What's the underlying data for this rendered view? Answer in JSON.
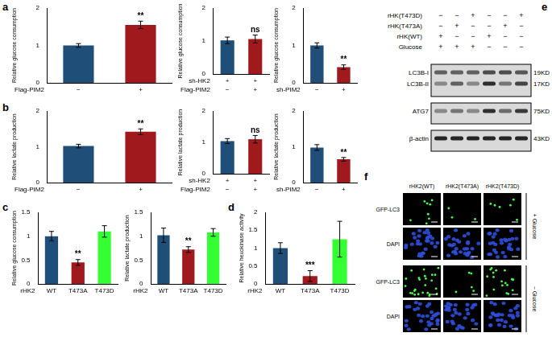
{
  "panel_labels": [
    "a",
    "b",
    "c",
    "d",
    "e",
    "f"
  ],
  "chart_data": [
    {
      "type": "bar",
      "y_label": "Relative glucose consumption",
      "x_rows": [
        "Flag-PIM2"
      ],
      "categories": [
        [
          "−"
        ],
        [
          "+"
        ]
      ],
      "values": [
        1.0,
        1.55
      ],
      "errors": [
        0.05,
        0.1
      ],
      "annotations": [
        {
          "index": 1,
          "text": "**"
        }
      ],
      "colors": [
        "#1f4e79",
        "#a0191c"
      ],
      "ylim": [
        0,
        2
      ],
      "yticks": [
        0,
        1,
        2
      ]
    },
    {
      "type": "bar",
      "y_label": "Relative glucose consumption",
      "x_rows": [
        "sh-HK2",
        "Flag-PIM2"
      ],
      "categories": [
        [
          "+",
          "−"
        ],
        [
          "+",
          "+"
        ]
      ],
      "values": [
        1.02,
        1.06
      ],
      "errors": [
        0.1,
        0.12
      ],
      "annotations": [
        {
          "index": 1,
          "text": "ns"
        }
      ],
      "colors": [
        "#1f4e79",
        "#a0191c"
      ],
      "ylim": [
        0,
        2
      ],
      "yticks": [
        0,
        1,
        2
      ]
    },
    {
      "type": "bar",
      "y_label": "Relative glucose consumption",
      "x_rows": [
        "sh-PIM2"
      ],
      "categories": [
        [
          "−"
        ],
        [
          "+"
        ]
      ],
      "values": [
        1.0,
        0.42
      ],
      "errors": [
        0.07,
        0.06
      ],
      "annotations": [
        {
          "index": 1,
          "text": "**"
        }
      ],
      "colors": [
        "#1f4e79",
        "#a0191c"
      ],
      "ylim": [
        0,
        2
      ],
      "yticks": [
        0,
        1,
        2
      ]
    },
    {
      "type": "bar",
      "y_label": "Relative lactate production",
      "x_rows": [
        "Flag-PIM2"
      ],
      "categories": [
        [
          "−"
        ],
        [
          "+"
        ]
      ],
      "values": [
        1.02,
        1.42
      ],
      "errors": [
        0.05,
        0.08
      ],
      "annotations": [
        {
          "index": 1,
          "text": "**"
        }
      ],
      "colors": [
        "#1f4e79",
        "#a0191c"
      ],
      "ylim": [
        0,
        2
      ],
      "yticks": [
        0,
        1,
        2
      ]
    },
    {
      "type": "bar",
      "y_label": "Relative lactate production",
      "x_rows": [
        "sh-HK2",
        "Flag-PIM2"
      ],
      "categories": [
        [
          "+",
          "−"
        ],
        [
          "+",
          "+"
        ]
      ],
      "values": [
        1.04,
        1.1
      ],
      "errors": [
        0.08,
        0.12
      ],
      "annotations": [
        {
          "index": 1,
          "text": "ns"
        }
      ],
      "colors": [
        "#1f4e79",
        "#a0191c"
      ],
      "ylim": [
        0,
        2
      ],
      "yticks": [
        0,
        1,
        2
      ]
    },
    {
      "type": "bar",
      "y_label": "Relative lactate production",
      "x_rows": [
        "sh-PIM2"
      ],
      "categories": [
        [
          "−"
        ],
        [
          "+"
        ]
      ],
      "values": [
        0.98,
        0.65
      ],
      "errors": [
        0.08,
        0.05
      ],
      "annotations": [
        {
          "index": 1,
          "text": "**"
        }
      ],
      "colors": [
        "#1f4e79",
        "#a0191c"
      ],
      "ylim": [
        0,
        2
      ],
      "yticks": [
        0,
        1,
        2
      ]
    },
    {
      "type": "bar",
      "y_label": "Relative glucose consumption",
      "x_rows": [
        "rHK2"
      ],
      "categories": [
        [
          "WT"
        ],
        [
          "T473A"
        ],
        [
          "T473D"
        ]
      ],
      "values": [
        1.0,
        0.45,
        1.1
      ],
      "errors": [
        0.1,
        0.06,
        0.12
      ],
      "annotations": [
        {
          "index": 1,
          "text": "**"
        }
      ],
      "colors": [
        "#1f4e79",
        "#a0191c",
        "#33ff33"
      ],
      "ylim": [
        0,
        1.5
      ],
      "yticks": [
        0,
        0.5,
        1,
        1.5
      ]
    },
    {
      "type": "bar",
      "y_label": "Relative lactate production",
      "x_rows": [
        "rHK2"
      ],
      "categories": [
        [
          "WT"
        ],
        [
          "T473A"
        ],
        [
          "T473D"
        ]
      ],
      "values": [
        1.02,
        0.72,
        1.08
      ],
      "errors": [
        0.15,
        0.06,
        0.08
      ],
      "annotations": [
        {
          "index": 1,
          "text": "**"
        }
      ],
      "colors": [
        "#1f4e79",
        "#a0191c",
        "#33ff33"
      ],
      "ylim": [
        0,
        1.5
      ],
      "yticks": [
        0,
        0.5,
        1,
        1.5
      ]
    },
    {
      "type": "bar",
      "y_label": "Relative hexokinase activity",
      "x_rows": [
        "rHK2"
      ],
      "categories": [
        [
          "WT"
        ],
        [
          "T473A"
        ],
        [
          "T473D"
        ]
      ],
      "values": [
        1.0,
        0.22,
        1.25
      ],
      "errors": [
        0.15,
        0.15,
        0.5
      ],
      "annotations": [
        {
          "index": 1,
          "text": "***"
        }
      ],
      "colors": [
        "#1f4e79",
        "#a0191c",
        "#33ff33"
      ],
      "ylim": [
        0,
        2
      ],
      "yticks": [
        0,
        0.5,
        1,
        1.5,
        2
      ]
    }
  ],
  "blot": {
    "conditions": [
      {
        "label": "rHK(T473D)",
        "signs": [
          "−",
          "−",
          "+",
          "−",
          "−",
          "+"
        ]
      },
      {
        "label": "rHK(T473A)",
        "signs": [
          "−",
          "+",
          "−",
          "−",
          "+",
          "−"
        ]
      },
      {
        "label": "rHK(WT)",
        "signs": [
          "+",
          "−",
          "−",
          "+",
          "−",
          "−"
        ]
      },
      {
        "label": "Glucose",
        "signs": [
          "+",
          "+",
          "+",
          "−",
          "−",
          "−"
        ]
      }
    ],
    "rows": [
      {
        "labels": [
          "LC3B-I",
          "LC3B-II"
        ],
        "sizes": [
          "19KD",
          "17KD"
        ],
        "bands": [
          [
            0.6,
            0.6,
            0.6,
            0.7,
            0.7,
            0.65
          ],
          [
            0.4,
            0.6,
            0.4,
            0.85,
            0.5,
            0.75
          ]
        ]
      },
      {
        "labels": [
          "ATG7"
        ],
        "sizes": [
          "75KD"
        ],
        "bands": [
          [
            0.4,
            0.5,
            0.4,
            0.85,
            0.55,
            0.8
          ]
        ]
      },
      {
        "labels": [
          "β-actin"
        ],
        "sizes": [
          "43KD"
        ],
        "bands": [
          [
            0.9,
            0.9,
            0.9,
            0.9,
            0.9,
            0.9
          ]
        ]
      }
    ]
  },
  "images": {
    "columns": [
      "rHK2(WT)",
      "rHK2(T473A)",
      "rHK2(T473D)"
    ],
    "groups": [
      {
        "label": "+ Glucose",
        "rows": [
          {
            "label": "GFP-LC3",
            "puncta": [
              8,
              3,
              6
            ]
          },
          {
            "label": "DAPI"
          }
        ]
      },
      {
        "label": "− Glucose",
        "rows": [
          {
            "label": "GFP-LC3",
            "puncta": [
              25,
              5,
              18
            ]
          },
          {
            "label": "DAPI"
          }
        ]
      }
    ]
  }
}
